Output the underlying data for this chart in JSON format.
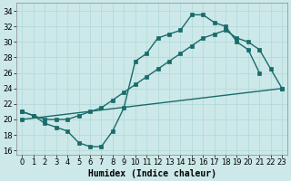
{
  "title": "",
  "xlabel": "Humidex (Indice chaleur)",
  "ylabel": "",
  "bg_color": "#cce8e8",
  "line_color": "#1a6b6b",
  "grid_color": "#b0d8d8",
  "xlim": [
    -0.5,
    23.5
  ],
  "ylim": [
    15.5,
    35.0
  ],
  "xticks": [
    0,
    1,
    2,
    3,
    4,
    5,
    6,
    7,
    8,
    9,
    10,
    11,
    12,
    13,
    14,
    15,
    16,
    17,
    18,
    19,
    20,
    21,
    22,
    23
  ],
  "yticks": [
    16,
    18,
    20,
    22,
    24,
    26,
    28,
    30,
    32,
    34
  ],
  "line1_x": [
    0,
    1,
    2,
    3,
    4,
    5,
    6,
    7,
    8,
    9,
    10,
    11,
    12,
    13,
    14,
    15,
    16,
    17,
    18,
    19,
    20,
    21
  ],
  "line1_y": [
    21,
    20.5,
    19.5,
    19.0,
    18.5,
    17.0,
    16.5,
    16.5,
    18.5,
    21.5,
    27.5,
    28.5,
    30.5,
    31.0,
    31.5,
    33.5,
    33.5,
    32.5,
    32.0,
    30.0,
    29.0,
    26.0
  ],
  "line2_x": [
    0,
    1,
    2,
    3,
    4,
    5,
    6,
    7,
    8,
    9,
    10,
    11,
    12,
    13,
    14,
    15,
    16,
    17,
    18,
    19,
    20,
    21,
    22,
    23
  ],
  "line2_y": [
    21,
    20.5,
    20.0,
    20.0,
    20.0,
    20.5,
    21.0,
    21.5,
    22.5,
    23.5,
    24.5,
    25.5,
    26.5,
    27.5,
    28.5,
    29.5,
    30.5,
    31.0,
    31.5,
    30.5,
    30.0,
    29.0,
    26.5,
    24.0
  ],
  "line3_x": [
    0,
    23
  ],
  "line3_y": [
    20.0,
    24.0
  ],
  "marker_size": 2.5,
  "line_width": 1.0,
  "font_size_tick": 6,
  "font_size_label": 7
}
